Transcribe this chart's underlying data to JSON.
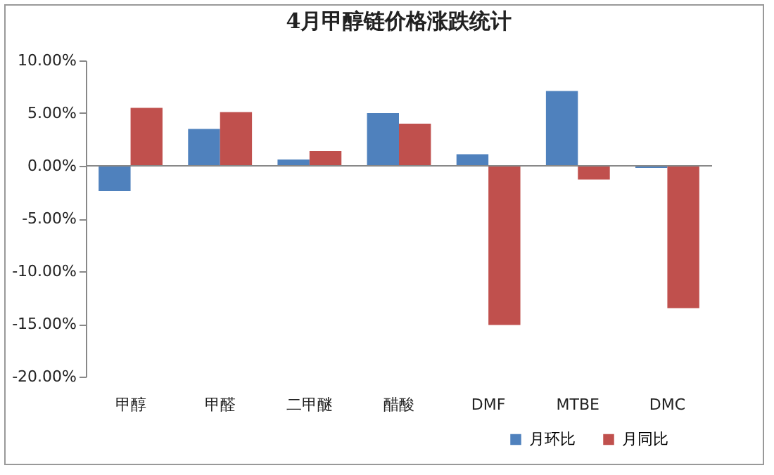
{
  "chart_data": {
    "type": "bar",
    "title": "4月甲醇链价格涨跌统计",
    "categories": [
      "甲醇",
      "甲醛",
      "二甲醚",
      "醋酸",
      "DMF",
      "MTBE",
      "DMC"
    ],
    "series": [
      {
        "name": "月环比",
        "color": "#4f81bd",
        "values": [
          -2.4,
          3.5,
          0.6,
          5.0,
          1.1,
          7.1,
          -0.2
        ]
      },
      {
        "name": "月同比",
        "color": "#c0504d",
        "values": [
          5.5,
          5.1,
          1.4,
          4.0,
          -15.1,
          -1.3,
          -13.5
        ]
      }
    ],
    "ylim": [
      -20,
      10
    ],
    "yticks": [
      {
        "value": -20,
        "label": "-20.00%"
      },
      {
        "value": -15,
        "label": "-15.00%"
      },
      {
        "value": -10,
        "label": "-10.00%"
      },
      {
        "value": -5,
        "label": "-5.00%"
      },
      {
        "value": 0,
        "label": "0.00%"
      },
      {
        "value": 5,
        "label": "5.00%"
      },
      {
        "value": 10,
        "label": "10.00%"
      }
    ],
    "legend": "bottom right"
  }
}
